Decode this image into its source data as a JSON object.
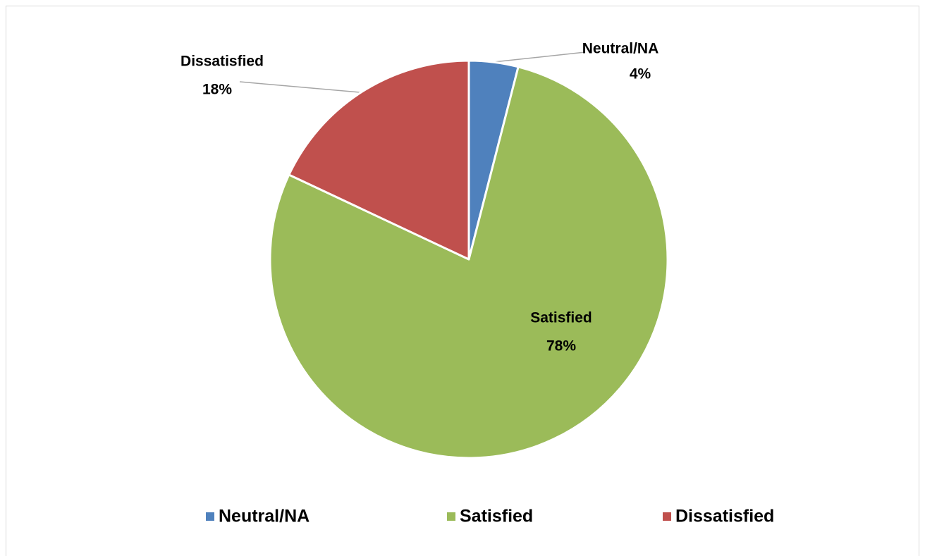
{
  "chart_data": {
    "type": "pie",
    "categories": [
      "Neutral/NA",
      "Satisfied",
      "Dissatisfied"
    ],
    "values": [
      4,
      78,
      18
    ],
    "value_labels": [
      "4%",
      "78%",
      "18%"
    ],
    "colors": [
      "#4f81bd",
      "#9bbb59",
      "#c0504d"
    ],
    "legend": "bottom"
  }
}
